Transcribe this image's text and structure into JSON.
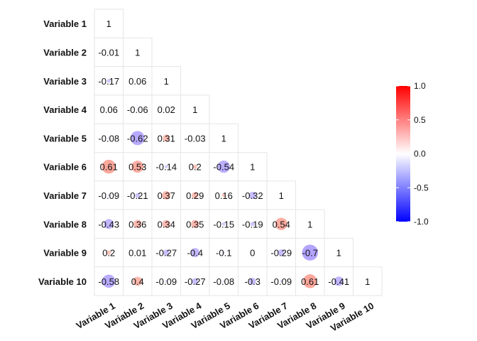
{
  "chart_data": {
    "type": "heatmap",
    "variables": [
      "Variable 1",
      "Variable 2",
      "Variable 3",
      "Variable 4",
      "Variable 5",
      "Variable 6",
      "Variable 7",
      "Variable 8",
      "Variable 9",
      "Variable 10"
    ],
    "values": [
      [
        1
      ],
      [
        -0.01,
        1
      ],
      [
        -0.17,
        0.06,
        1
      ],
      [
        0.06,
        -0.06,
        0.02,
        1
      ],
      [
        -0.08,
        -0.62,
        0.31,
        -0.03,
        1
      ],
      [
        0.61,
        0.53,
        -0.14,
        0.2,
        -0.54,
        1
      ],
      [
        -0.09,
        -0.21,
        0.37,
        0.29,
        0.16,
        -0.32,
        1
      ],
      [
        -0.43,
        0.36,
        0.34,
        0.35,
        -0.15,
        -0.19,
        0.54,
        1
      ],
      [
        0.2,
        0.01,
        -0.27,
        -0.4,
        -0.1,
        0,
        -0.29,
        -0.7,
        1
      ],
      [
        -0.58,
        0.4,
        -0.09,
        -0.27,
        -0.08,
        -0.3,
        -0.09,
        0.61,
        -0.41,
        1
      ]
    ],
    "legend": {
      "ticks": [
        1.0,
        0.5,
        0.0,
        -0.5,
        -1.0
      ],
      "tick_labels": [
        "1.0",
        "0.5",
        "0.0",
        "-0.5",
        "-1.0"
      ],
      "range": [
        -1,
        1
      ],
      "colors": {
        "low": "#0000ff",
        "mid": "#ffffff",
        "high": "#ff0000"
      },
      "placement": "right"
    },
    "title": "",
    "xlabel": "",
    "ylabel": "",
    "grid": true
  }
}
